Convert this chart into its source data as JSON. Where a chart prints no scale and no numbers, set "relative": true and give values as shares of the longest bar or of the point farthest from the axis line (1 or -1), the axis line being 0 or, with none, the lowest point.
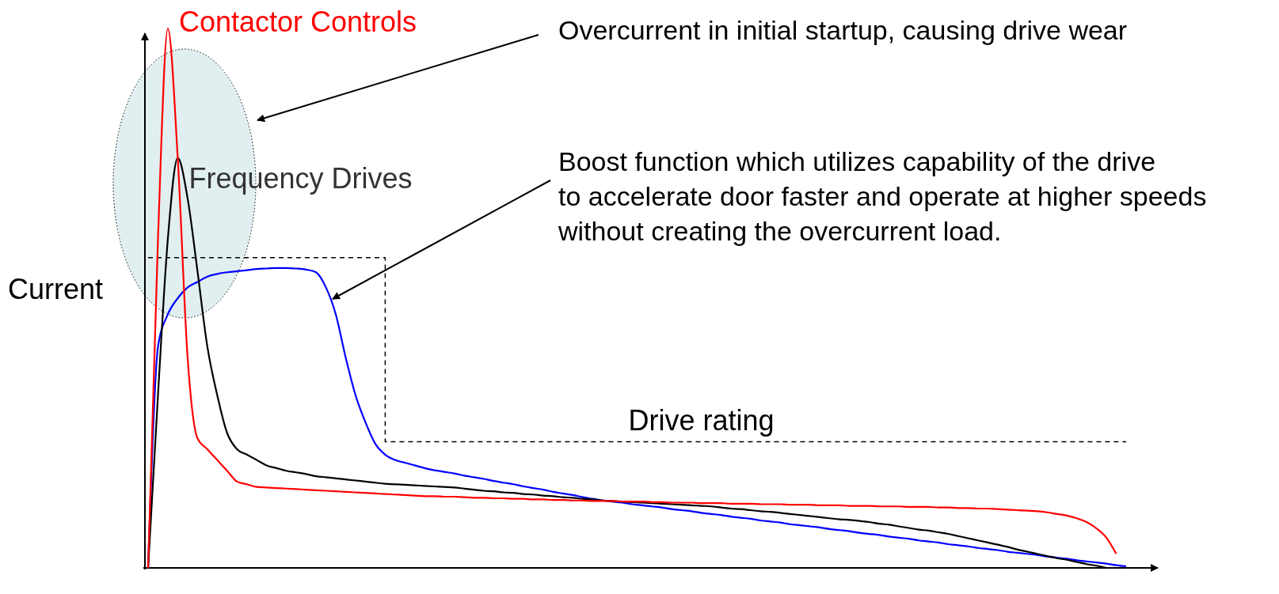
{
  "chart_data": {
    "type": "line",
    "relative": true,
    "ylabel": "Current",
    "categories": [
      null,
      null,
      null,
      null,
      null,
      null,
      null,
      null,
      null,
      null,
      null,
      null,
      null,
      null,
      null,
      null,
      null,
      null,
      null,
      null,
      null,
      null,
      null,
      null,
      null,
      null,
      null,
      null,
      null,
      null,
      null,
      null,
      null,
      null,
      null,
      null,
      null,
      null,
      null,
      null,
      null,
      null,
      null,
      null,
      null,
      null,
      null,
      null,
      null,
      null,
      null,
      null,
      null,
      null,
      null,
      null,
      null,
      null,
      null,
      null,
      null,
      null,
      null,
      null,
      null,
      null,
      null,
      null,
      null,
      null,
      null,
      null,
      null,
      null,
      null,
      null,
      null,
      null,
      null,
      null,
      null,
      null,
      null,
      null,
      null,
      null,
      null,
      null,
      null,
      null,
      null,
      null,
      null,
      null,
      null,
      null,
      null,
      null,
      null,
      null
    ],
    "series": [
      {
        "name": "Drive rating",
        "type": "step",
        "line_style": "dashed",
        "color": "#000000",
        "values": [
          0.575,
          0.575,
          0.575,
          0.575,
          0.575,
          0.575,
          0.575,
          0.575,
          0.575,
          0.575,
          0.575,
          0.575,
          0.575,
          0.575,
          0.575,
          0.575,
          0.575,
          0.575,
          0.575,
          0.575,
          0.575,
          0.575,
          0.575,
          0.575,
          0.234,
          0.234,
          0.234,
          0.234,
          0.234,
          0.234,
          0.234,
          0.234,
          0.234,
          0.234,
          0.234,
          0.234,
          0.234,
          0.234,
          0.234,
          0.234,
          0.234,
          0.234,
          0.234,
          0.234,
          0.234,
          0.234,
          0.234,
          0.234,
          0.234,
          0.234,
          0.234,
          0.234,
          0.234,
          0.234,
          0.234,
          0.234,
          0.234,
          0.234,
          0.234,
          0.234,
          0.234,
          0.234,
          0.234,
          0.234,
          0.234,
          0.234,
          0.234,
          0.234,
          0.234,
          0.234,
          0.234,
          0.234,
          0.234,
          0.234,
          0.234,
          0.234,
          0.234,
          0.234,
          0.234,
          0.234,
          0.234,
          0.234,
          0.234,
          0.234,
          0.234,
          0.234,
          0.234,
          0.234,
          0.234,
          0.234,
          0.234,
          0.234,
          0.234,
          0.234,
          0.234,
          0.234,
          0.234,
          0.234,
          0.234,
          0.234
        ]
      },
      {
        "color": "#0000ff",
        "values": [
          0,
          0.41,
          0.47,
          0.5,
          0.52,
          0.53,
          0.54,
          0.545,
          0.548,
          0.55,
          0.552,
          0.554,
          0.555,
          0.556,
          0.556,
          0.555,
          0.553,
          0.548,
          0.52,
          0.47,
          0.39,
          0.32,
          0.27,
          0.23,
          0.21,
          0.2,
          0.195,
          0.19,
          0.185,
          0.181,
          0.178,
          0.175,
          0.171,
          0.168,
          0.165,
          0.161,
          0.158,
          0.155,
          0.151,
          0.148,
          0.145,
          0.141,
          0.138,
          0.135,
          0.131,
          0.128,
          0.125,
          0.123,
          0.121,
          0.118,
          0.116,
          0.114,
          0.112,
          0.109,
          0.107,
          0.105,
          0.102,
          0.1,
          0.098,
          0.095,
          0.093,
          0.091,
          0.088,
          0.086,
          0.084,
          0.081,
          0.079,
          0.077,
          0.075,
          0.072,
          0.07,
          0.068,
          0.065,
          0.063,
          0.061,
          0.058,
          0.056,
          0.054,
          0.051,
          0.049,
          0.047,
          0.044,
          0.042,
          0.04,
          0.037,
          0.035,
          0.033,
          0.03,
          0.028,
          0.026,
          0.024,
          0.021,
          0.019,
          0.017,
          0.014,
          0.012,
          0.01,
          0.008,
          0.005,
          0.003
        ]
      },
      {
        "name": "Frequency Drives",
        "color": "#000000",
        "values": [
          0,
          0.32,
          0.61,
          0.76,
          0.685,
          0.55,
          0.41,
          0.32,
          0.25,
          0.22,
          0.21,
          0.2,
          0.19,
          0.185,
          0.18,
          0.177,
          0.174,
          0.17,
          0.168,
          0.166,
          0.164,
          0.162,
          0.16,
          0.158,
          0.156,
          0.155,
          0.154,
          0.153,
          0.152,
          0.151,
          0.15,
          0.149,
          0.147,
          0.145,
          0.143,
          0.142,
          0.14,
          0.139,
          0.137,
          0.136,
          0.134,
          0.133,
          0.131,
          0.13,
          0.128,
          0.127,
          0.125,
          0.124,
          0.123,
          0.122,
          0.121,
          0.12,
          0.119,
          0.118,
          0.117,
          0.116,
          0.115,
          0.114,
          0.112,
          0.11,
          0.109,
          0.107,
          0.105,
          0.104,
          0.102,
          0.1,
          0.098,
          0.096,
          0.094,
          0.092,
          0.09,
          0.089,
          0.087,
          0.085,
          0.082,
          0.08,
          0.077,
          0.074,
          0.071,
          0.069,
          0.066,
          0.063,
          0.059,
          0.055,
          0.051,
          0.047,
          0.043,
          0.039,
          0.034,
          0.03,
          0.026,
          0.022,
          0.018,
          0.015,
          0.011,
          0.007,
          0.004,
          0,
          null,
          null
        ]
      },
      {
        "name": "Contactor Controls",
        "color": "#ff0000",
        "values": [
          0,
          0.61,
          1,
          0.76,
          0.39,
          0.24,
          0.22,
          0.2,
          0.18,
          0.16,
          0.155,
          0.15,
          0.149,
          0.148,
          0.147,
          0.146,
          0.145,
          0.144,
          0.143,
          0.142,
          0.141,
          0.14,
          0.139,
          0.138,
          0.137,
          0.136,
          0.135,
          0.134,
          0.133,
          0.133,
          0.132,
          0.132,
          0.131,
          0.13,
          0.13,
          0.129,
          0.129,
          0.128,
          0.128,
          0.127,
          0.127,
          0.126,
          0.126,
          0.125,
          0.125,
          0.124,
          0.124,
          0.124,
          0.123,
          0.123,
          0.123,
          0.122,
          0.122,
          0.121,
          0.121,
          0.121,
          0.12,
          0.12,
          0.12,
          0.119,
          0.119,
          0.119,
          0.118,
          0.118,
          0.118,
          0.117,
          0.117,
          0.117,
          0.116,
          0.116,
          0.116,
          0.115,
          0.115,
          0.115,
          0.114,
          0.114,
          0.114,
          0.113,
          0.113,
          0.113,
          0.112,
          0.112,
          0.111,
          0.111,
          0.11,
          0.11,
          0.109,
          0.108,
          0.107,
          0.106,
          0.105,
          0.103,
          0.1,
          0.097,
          0.092,
          0.085,
          0.073,
          0.056,
          0.026,
          null
        ]
      }
    ],
    "annotations": [
      "Overcurrent in initial startup, causing drive wear",
      "Boost function which utilizes capability of the drive\nto accelerate door faster and operate at higher speeds\nwithout creating the overcurrent load."
    ]
  }
}
